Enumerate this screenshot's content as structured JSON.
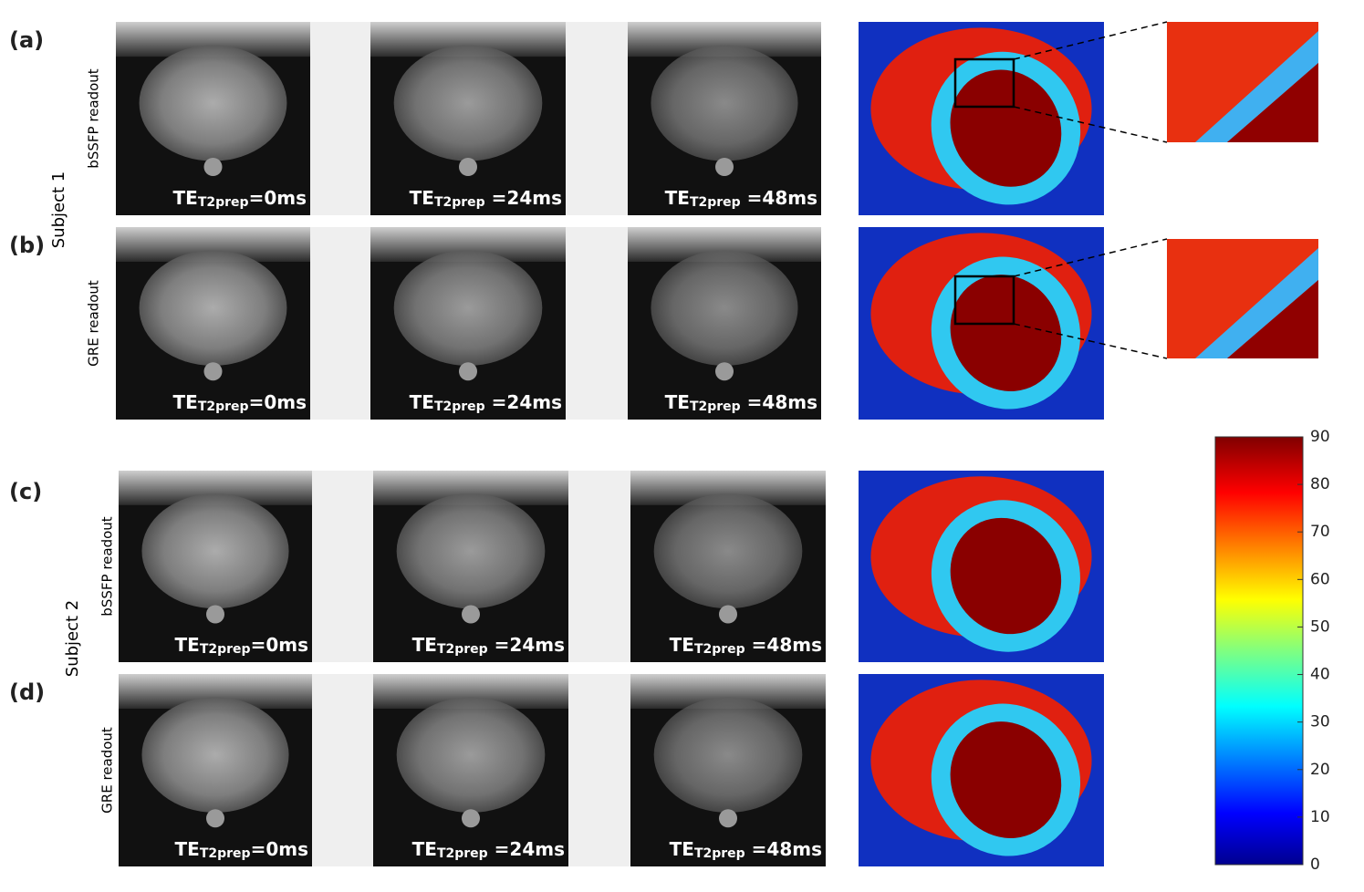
{
  "figure": {
    "rows": [
      {
        "panel": "(a)",
        "readout": "bSSFP readout",
        "images": [
          {
            "te": "TE",
            "sub": "T2prep",
            "value": "=0ms"
          },
          {
            "te": "TE",
            "sub": "T2prep",
            "value": " =24ms"
          },
          {
            "te": "TE",
            "sub": "T2prep",
            "value": " =48ms"
          }
        ]
      },
      {
        "panel": "(b)",
        "readout": "GRE readout",
        "images": [
          {
            "te": "TE",
            "sub": "T2prep",
            "value": "=0ms"
          },
          {
            "te": "TE",
            "sub": "T2prep",
            "value": " =24ms"
          },
          {
            "te": "TE",
            "sub": "T2prep",
            "value": " =48ms"
          }
        ]
      },
      {
        "panel": "(c)",
        "readout": "bSSFP readout",
        "images": [
          {
            "te": "TE",
            "sub": "T2prep",
            "value": "=0ms"
          },
          {
            "te": "TE",
            "sub": "T2prep",
            "value": " =24ms"
          },
          {
            "te": "TE",
            "sub": "T2prep",
            "value": " =48ms"
          }
        ]
      },
      {
        "panel": "(d)",
        "readout": "GRE readout",
        "images": [
          {
            "te": "TE",
            "sub": "T2prep",
            "value": "=0ms"
          },
          {
            "te": "TE",
            "sub": "T2prep",
            "value": " =24ms"
          },
          {
            "te": "TE",
            "sub": "T2prep",
            "value": " =48ms"
          }
        ]
      }
    ],
    "subjects": [
      "Subject 1",
      "Subject 2"
    ],
    "colorbar": {
      "lim": [
        0,
        90
      ],
      "ticks": [
        0,
        10,
        20,
        30,
        40,
        50,
        60,
        70,
        80,
        90
      ]
    }
  }
}
